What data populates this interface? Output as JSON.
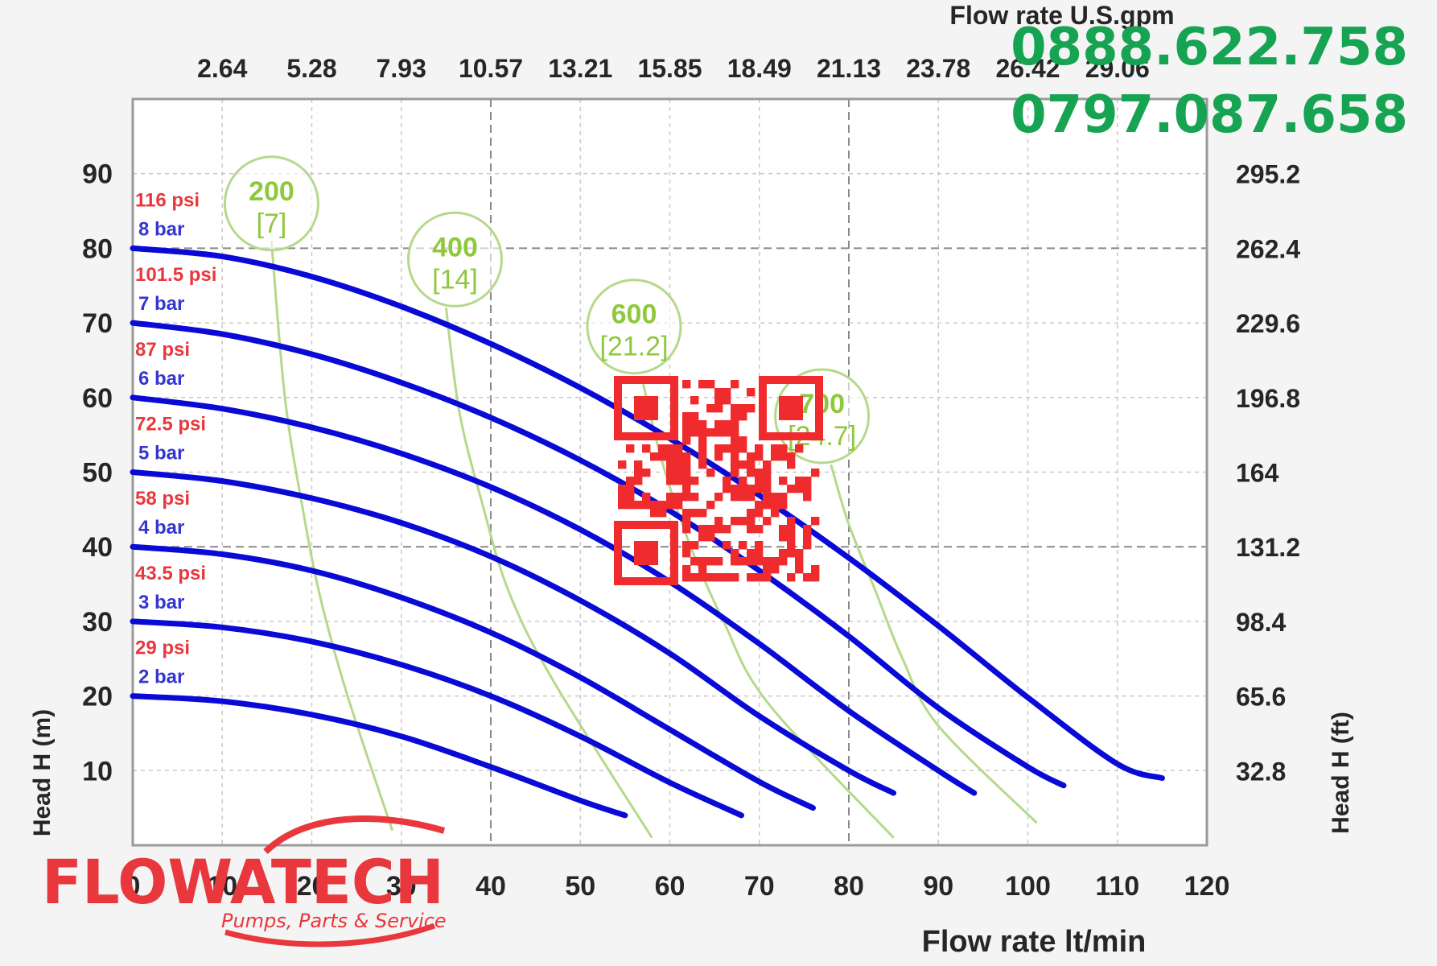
{
  "chart_data": {
    "type": "line",
    "xlabel": "Flow rate lt/min",
    "x2label": "Flow rate U.S.gpm",
    "ylabel": "Head H (m)",
    "y2label": "Head H (ft)",
    "xlim": [
      0,
      120
    ],
    "ylim": [
      0,
      100
    ],
    "x_ticks": [
      "0",
      "10",
      "20",
      "30",
      "40",
      "50",
      "60",
      "70",
      "80",
      "90",
      "100",
      "110",
      "120"
    ],
    "x2_ticks": [
      "2.64",
      "5.28",
      "7.93",
      "10.57",
      "13.21",
      "15.85",
      "18.49",
      "21.13",
      "23.78",
      "26.42",
      "29.06"
    ],
    "y_ticks": [
      "10",
      "20",
      "30",
      "40",
      "50",
      "60",
      "70",
      "80",
      "90"
    ],
    "y2_ticks": [
      "32.8",
      "65.6",
      "98.4",
      "131.2",
      "164",
      "196.8",
      "229.6",
      "262.4",
      "295.2"
    ],
    "grid": true,
    "series": [
      {
        "name": "8 bar",
        "psi_label": "116 psi",
        "bar_label": "8 bar",
        "x": [
          0,
          10,
          20,
          30,
          40,
          50,
          60,
          70,
          80,
          90,
          100,
          110,
          115
        ],
        "y": [
          80,
          78.9,
          76.2,
          72.2,
          67.2,
          61.3,
          54.5,
          46.9,
          38.5,
          29.4,
          19.8,
          10.9,
          9
        ]
      },
      {
        "name": "7 bar",
        "psi_label": "101.5 psi",
        "bar_label": "7 bar",
        "x": [
          0,
          10,
          20,
          30,
          40,
          50,
          60,
          70,
          80,
          90,
          100,
          104
        ],
        "y": [
          70,
          68.5,
          65.8,
          62,
          57.3,
          51.6,
          44.8,
          36.8,
          28,
          18.4,
          10.5,
          8
        ]
      },
      {
        "name": "6 bar",
        "psi_label": "87 psi",
        "bar_label": "6 bar",
        "x": [
          0,
          10,
          20,
          30,
          40,
          50,
          60,
          70,
          80,
          90,
          94
        ],
        "y": [
          60,
          58.5,
          56,
          52.5,
          48,
          42.3,
          35.3,
          27,
          18,
          10,
          7
        ]
      },
      {
        "name": "5 bar",
        "psi_label": "72.5 psi",
        "bar_label": "5 bar",
        "x": [
          0,
          10,
          20,
          30,
          40,
          50,
          60,
          70,
          80,
          85
        ],
        "y": [
          50,
          48.8,
          46.5,
          43.2,
          38.7,
          32.8,
          25.7,
          17.3,
          10,
          7
        ]
      },
      {
        "name": "4 bar",
        "psi_label": "58 psi",
        "bar_label": "4 bar",
        "x": [
          0,
          10,
          20,
          30,
          40,
          50,
          60,
          70,
          76
        ],
        "y": [
          40,
          39,
          36.8,
          33.2,
          28.5,
          22.5,
          15.5,
          8.5,
          5
        ]
      },
      {
        "name": "3 bar",
        "psi_label": "43.5 psi",
        "bar_label": "3 bar",
        "x": [
          0,
          10,
          20,
          30,
          40,
          50,
          60,
          68
        ],
        "y": [
          30,
          29.2,
          27.3,
          24.2,
          20,
          14.6,
          8.4,
          4
        ]
      },
      {
        "name": "2 bar",
        "psi_label": "29 psi",
        "bar_label": "2 bar",
        "x": [
          0,
          10,
          20,
          30,
          40,
          50,
          55
        ],
        "y": [
          20,
          19.3,
          17.5,
          14.6,
          10.5,
          6,
          4
        ]
      }
    ],
    "air_consumption": [
      {
        "value": "200",
        "unit": "[7]",
        "cx": 15.5,
        "cy": 86,
        "x": [
          15.5,
          17,
          19,
          21,
          24,
          29
        ],
        "y": [
          81,
          60,
          45,
          33,
          20,
          2
        ]
      },
      {
        "value": "400",
        "unit": "[14]",
        "cx": 36,
        "cy": 78.5,
        "x": [
          35,
          36.5,
          39,
          42,
          47,
          58
        ],
        "y": [
          72,
          58,
          46,
          34,
          22,
          1
        ]
      },
      {
        "value": "600",
        "unit": "[21.2]",
        "cx": 56,
        "cy": 69.5,
        "x": [
          57,
          59,
          62,
          66,
          71,
          85
        ],
        "y": [
          62,
          52,
          41,
          30,
          19,
          1
        ]
      },
      {
        "value": "700",
        "unit": "[24.7]",
        "cx": 77,
        "cy": 57.5,
        "x": [
          78,
          80,
          83,
          86,
          90,
          101
        ],
        "y": [
          51,
          43,
          34,
          25,
          16,
          3
        ]
      }
    ],
    "legend_placement": "left-inside"
  },
  "contact": {
    "phone_1": "0888.622.758",
    "phone_2": "0797.087.658"
  },
  "logo": {
    "brand": "FLOWATECH",
    "tagline": "Pumps, Parts & Service"
  },
  "colors": {
    "curve": "#0a0ad6",
    "air_curve": "#b5d98a",
    "air_label": "#8fc83c",
    "psi": "#e8383d",
    "bar": "#3535d0",
    "phone": "#16a352",
    "brand": "#e8383d",
    "qr": "#ef2b2d"
  },
  "overlay": {
    "qr_icon": "qr-code-icon"
  }
}
